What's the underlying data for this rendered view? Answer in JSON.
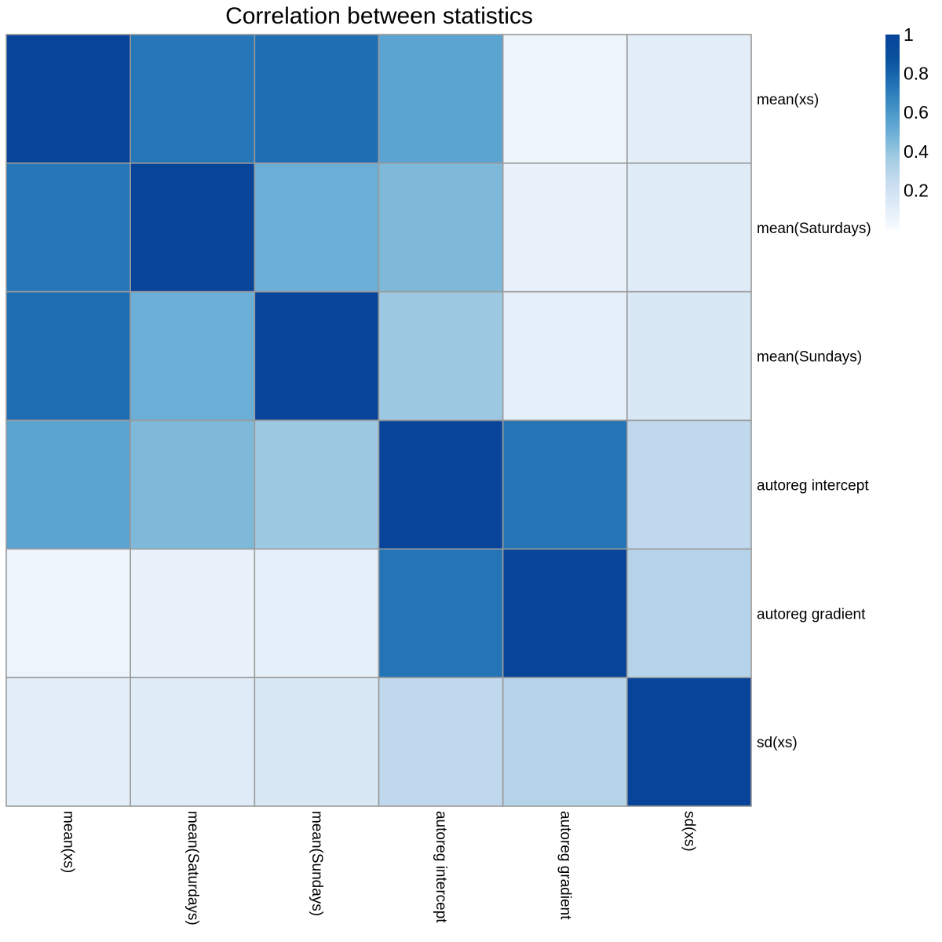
{
  "chart_data": {
    "type": "heatmap",
    "title": "Correlation between statistics",
    "row_labels": [
      "mean(xs)",
      "mean(Saturdays)",
      "mean(Sundays)",
      "autoreg intercept",
      "autoreg gradient",
      "sd(xs)"
    ],
    "col_labels": [
      "mean(xs)",
      "mean(Saturdays)",
      "mean(Sundays)",
      "autoreg intercept",
      "autoreg gradient",
      "sd(xs)"
    ],
    "values": [
      [
        1.0,
        0.73,
        0.76,
        0.55,
        0.05,
        0.1
      ],
      [
        0.73,
        1.0,
        0.5,
        0.45,
        0.07,
        0.12
      ],
      [
        0.76,
        0.5,
        1.0,
        0.38,
        0.09,
        0.15
      ],
      [
        0.55,
        0.45,
        0.38,
        1.0,
        0.74,
        0.27
      ],
      [
        0.05,
        0.07,
        0.09,
        0.74,
        1.0,
        0.3
      ],
      [
        0.1,
        0.12,
        0.15,
        0.27,
        0.3,
        1.0
      ]
    ],
    "colorscale": {
      "min": 0.0,
      "max": 1.0,
      "colors": [
        "#f7fbff",
        "#deebf7",
        "#c6dbef",
        "#9ecae1",
        "#6baed6",
        "#4292c6",
        "#2171b5",
        "#08519c",
        "#08449a"
      ]
    },
    "legend": {
      "ticks": [
        1,
        0.8,
        0.6,
        0.4,
        0.2
      ],
      "tick_labels": [
        "1",
        "0.8",
        "0.6",
        "0.4",
        "0.2"
      ],
      "placement": "top-right"
    },
    "grid_color": "#9a9a9a"
  }
}
